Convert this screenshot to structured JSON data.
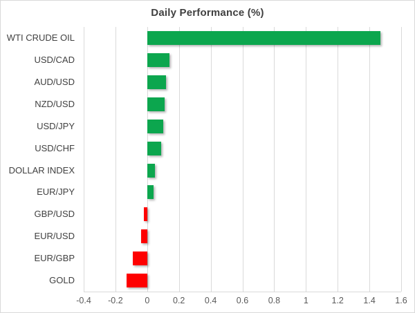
{
  "chart_data": {
    "type": "bar",
    "orientation": "horizontal",
    "title": "Daily Performance (%)",
    "categories": [
      "WTI CRUDE OIL",
      "USD/CAD",
      "AUD/USD",
      "NZD/USD",
      "USD/JPY",
      "USD/CHF",
      "DOLLAR INDEX",
      "EUR/JPY",
      "GBP/USD",
      "EUR/USD",
      "EUR/GBP",
      "GOLD"
    ],
    "values": [
      1.47,
      0.14,
      0.12,
      0.11,
      0.1,
      0.09,
      0.05,
      0.04,
      -0.02,
      -0.04,
      -0.09,
      -0.13
    ],
    "xlabel": "",
    "ylabel": "",
    "xlim": [
      -0.4,
      1.6
    ],
    "x_ticks": [
      "-0.4",
      "-0.2",
      "0",
      "0.2",
      "0.4",
      "0.6",
      "0.8",
      "1",
      "1.2",
      "1.4",
      "1.6"
    ],
    "x_tick_values": [
      -0.4,
      -0.2,
      0,
      0.2,
      0.4,
      0.6,
      0.8,
      1,
      1.2,
      1.4,
      1.6
    ],
    "grid": true,
    "legend": false,
    "colors": {
      "positive": "#0CA64E",
      "negative": "#FE0000",
      "gridline": "#d9d9d9",
      "title_text": "#404040",
      "category_text": "#404040",
      "tick_text": "#595959"
    }
  }
}
